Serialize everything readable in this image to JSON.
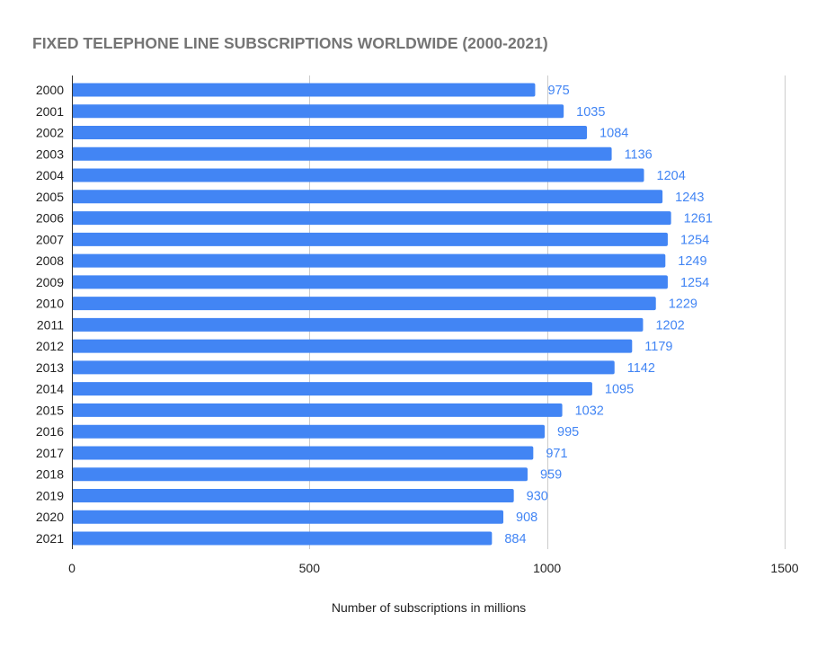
{
  "chart_data": {
    "type": "bar",
    "orientation": "horizontal",
    "title": "FIXED TELEPHONE LINE SUBSCRIPTIONS WORLDWIDE (2000-2021)",
    "xlabel": "Number of subscriptions in millions",
    "ylabel": "",
    "categories": [
      "2000",
      "2001",
      "2002",
      "2003",
      "2004",
      "2005",
      "2006",
      "2007",
      "2008",
      "2009",
      "2010",
      "2011",
      "2012",
      "2013",
      "2014",
      "2015",
      "2016",
      "2017",
      "2018",
      "2019",
      "2020",
      "2021"
    ],
    "values": [
      975,
      1035,
      1084,
      1136,
      1204,
      1243,
      1261,
      1254,
      1249,
      1254,
      1229,
      1202,
      1179,
      1142,
      1095,
      1032,
      995,
      971,
      959,
      930,
      908,
      884
    ],
    "xlim": [
      0,
      1500
    ],
    "xticks": [
      "0",
      "500",
      "1000",
      "1500"
    ],
    "grid": true,
    "data_labels": true,
    "bar_color": "#4285f4",
    "label_color": "#4285f4"
  }
}
